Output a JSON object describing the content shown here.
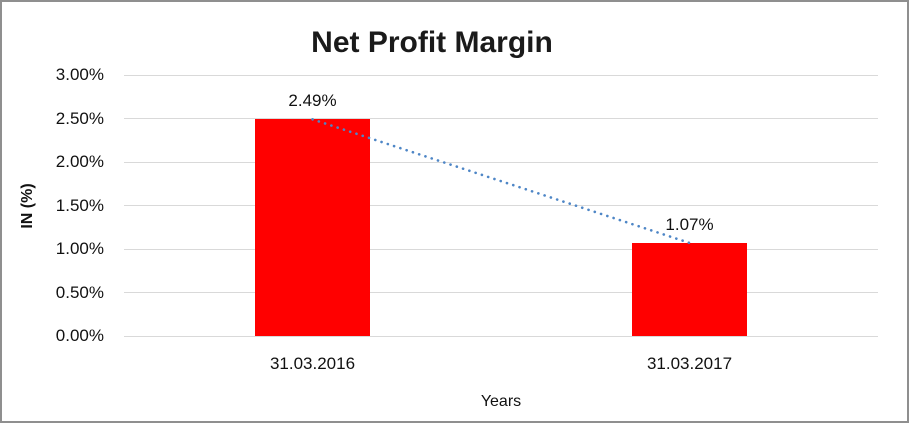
{
  "chart_data": {
    "type": "bar",
    "title": "Net Profit Margin",
    "xlabel": "Years",
    "ylabel": "IN (%)",
    "categories": [
      "31.03.2016",
      "31.03.2017"
    ],
    "series": [
      {
        "name": "Net Profit Margin",
        "values": [
          2.49,
          1.07
        ]
      }
    ],
    "data_labels": [
      "2.49%",
      "1.07%"
    ],
    "ylim": [
      0,
      3
    ],
    "ytick_step": 0.5,
    "ytick_labels": [
      "0.00%",
      "0.50%",
      "1.00%",
      "1.50%",
      "2.00%",
      "2.50%",
      "3.00%"
    ],
    "grid": "horizontal",
    "legend": "none",
    "trendline": {
      "type": "linear",
      "style": "dotted",
      "points": [
        2.49,
        1.07
      ]
    },
    "colors": {
      "bar": "#ff0000",
      "trendline": "#4e86c6",
      "gridline": "#d9d9d9",
      "text": "#111111",
      "title": "#1a1a1a",
      "background": "#ffffff",
      "frame_border": "#8f8f8f"
    }
  }
}
